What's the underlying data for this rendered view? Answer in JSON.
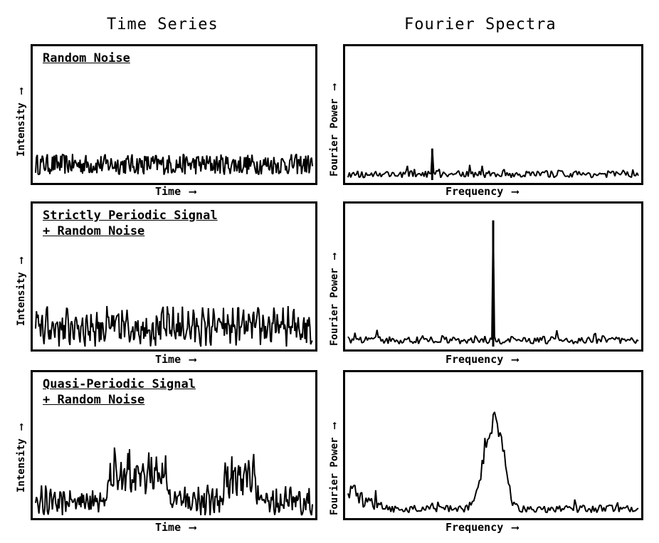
{
  "columns": {
    "left": "Time Series",
    "right": "Fourier Spectra"
  },
  "axes": {
    "time": "Time",
    "frequency": "Frequency",
    "intensity": "Intensity",
    "fourier_power": "Fourier Power"
  },
  "icons": {
    "axis_arrow": "arrow-right-icon"
  },
  "colors": {
    "ink": "#000000",
    "background": "#ffffff"
  },
  "chart_data": [
    {
      "type": "line",
      "title": "Random Noise",
      "xlabel": "Time",
      "ylabel": "Intensity",
      "ylim": [
        0,
        1
      ],
      "signal": "random-noise",
      "baseline": 0.12,
      "noise_amplitude": 0.08
    },
    {
      "type": "line",
      "title": "Strictly Periodic Signal\n+ Random Noise",
      "xlabel": "Time",
      "ylabel": "Intensity",
      "ylim": [
        0,
        1
      ],
      "signal": "periodic+noise",
      "baseline": 0.14,
      "noise_amplitude": 0.1
    },
    {
      "type": "line",
      "title": "Quasi-Periodic Signal\n+ Random Noise",
      "xlabel": "Time",
      "ylabel": "Intensity",
      "ylim": [
        0,
        1
      ],
      "signal": "quasi-periodic+noise",
      "baseline": 0.1,
      "burst_peak": 0.55
    },
    {
      "type": "bar",
      "title": "",
      "xlabel": "Frequency",
      "ylabel": "Fourier Power",
      "ylim": [
        0,
        1
      ],
      "spectrum": "flat-noise",
      "noise_level": 0.06,
      "peaks": [
        {
          "x": 0.29,
          "y": 0.24
        }
      ]
    },
    {
      "type": "bar",
      "title": "",
      "xlabel": "Frequency",
      "ylabel": "Fourier Power",
      "ylim": [
        0,
        1
      ],
      "spectrum": "single-peak",
      "noise_level": 0.06,
      "peaks": [
        {
          "x": 0.5,
          "y": 0.9
        }
      ]
    },
    {
      "type": "bar",
      "title": "",
      "xlabel": "Frequency",
      "ylabel": "Fourier Power",
      "ylim": [
        0,
        1
      ],
      "spectrum": "broad-peak",
      "noise_level": 0.06,
      "peaks": [
        {
          "x": 0.5,
          "y": 0.9,
          "width": 0.06
        }
      ]
    }
  ]
}
